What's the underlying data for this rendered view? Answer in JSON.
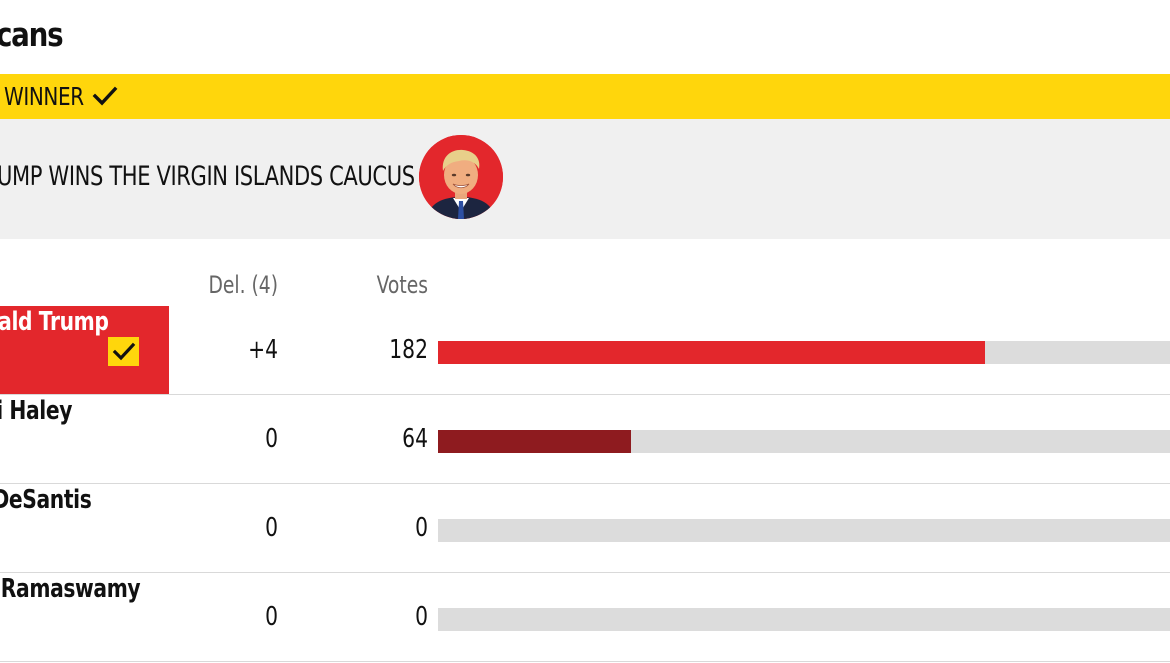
{
  "section": {
    "title": "cans"
  },
  "winner_banner": {
    "label": "WINNER",
    "icon": "checkmark-icon"
  },
  "headline": {
    "text": "UMP WINS THE VIRGIN ISLANDS CAUCUS",
    "avatar": "candidate-portrait"
  },
  "table": {
    "headers": {
      "delegates": "Del. (4)",
      "votes": "Votes"
    },
    "rows": [
      {
        "name": "nald Trump",
        "delegates": "+4",
        "votes": "182",
        "vote_count": 182,
        "bar_color": "#e3272c",
        "winner": true
      },
      {
        "name": "ki Haley",
        "delegates": "0",
        "votes": "64",
        "vote_count": 64,
        "bar_color": "#8e1b1f",
        "winner": false
      },
      {
        "name": "n DeSantis",
        "delegates": "0",
        "votes": "0",
        "vote_count": 0,
        "bar_color": "#8e1b1f",
        "winner": false
      },
      {
        "name": "ek Ramaswamy",
        "delegates": "0",
        "votes": "0",
        "vote_count": 0,
        "bar_color": "#8e1b1f",
        "winner": false
      }
    ]
  },
  "colors": {
    "accent_yellow": "#ffd60c",
    "winner_red": "#e3272c",
    "runner_up_red": "#8e1b1f",
    "track_gray": "#dcdcdc",
    "headline_bg": "#f0f0f0"
  }
}
